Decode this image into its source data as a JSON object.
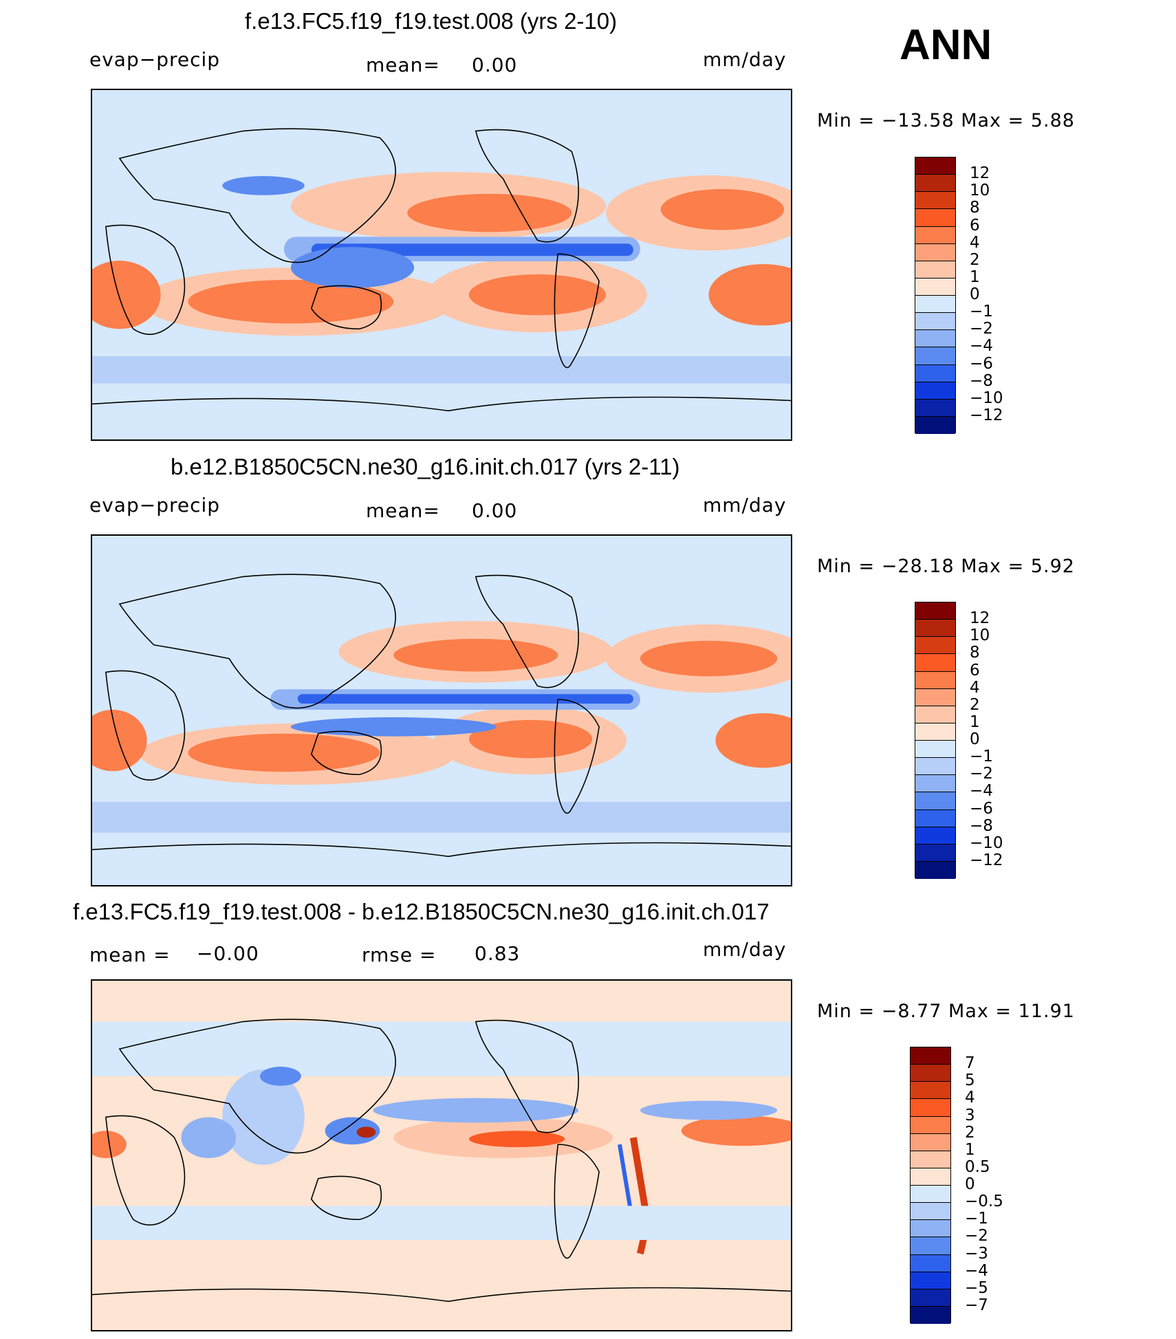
{
  "season": "ANN",
  "panels": [
    {
      "title": "f.e13.FC5.f19_f19.test.008 (yrs 2-10)",
      "left_label": "evap−precip",
      "center_label": "mean=",
      "center_value": "0.00",
      "right_label": "mm/day",
      "minmax": "Min  =  −13.58  Max  =     5.88",
      "colorbar": {
        "colors": [
          "#7f0000",
          "#b3260c",
          "#d73d12",
          "#fb5a24",
          "#fc7e4b",
          "#fda17a",
          "#fdc6aa",
          "#fee4d2",
          "#d6e8fb",
          "#b6cff8",
          "#8fb2f4",
          "#5b8bf0",
          "#2e62ec",
          "#0f3ae0",
          "#0a22a8",
          "#00107a"
        ],
        "labels": [
          "12",
          "10",
          "8",
          "6",
          "4",
          "2",
          "1",
          "0",
          "−1",
          "−2",
          "−4",
          "−6",
          "−8",
          "−10",
          "−12"
        ]
      }
    },
    {
      "title": "b.e12.B1850C5CN.ne30_g16.init.ch.017 (yrs 2-11)",
      "left_label": "evap−precip",
      "center_label": "mean=",
      "center_value": "0.00",
      "right_label": "mm/day",
      "minmax": "Min  =  −28.18  Max  =     5.92",
      "colorbar": {
        "colors": [
          "#7f0000",
          "#b3260c",
          "#d73d12",
          "#fb5a24",
          "#fc7e4b",
          "#fda17a",
          "#fdc6aa",
          "#fee4d2",
          "#d6e8fb",
          "#b6cff8",
          "#8fb2f4",
          "#5b8bf0",
          "#2e62ec",
          "#0f3ae0",
          "#0a22a8",
          "#00107a"
        ],
        "labels": [
          "12",
          "10",
          "8",
          "6",
          "4",
          "2",
          "1",
          "0",
          "−1",
          "−2",
          "−4",
          "−6",
          "−8",
          "−10",
          "−12"
        ]
      }
    },
    {
      "title": "f.e13.FC5.f19_f19.test.008 - b.e12.B1850C5CN.ne30_g16.init.ch.017",
      "left_label": "mean  =",
      "left_value": "−0.00",
      "center_label": "rmse  =",
      "center_value": "0.83",
      "right_label": "mm/day",
      "minmax": "Min  =     −8.77  Max  =    11.91",
      "colorbar": {
        "colors": [
          "#7f0000",
          "#b3260c",
          "#d73d12",
          "#fb5a24",
          "#fc7e4b",
          "#fda17a",
          "#fdc6aa",
          "#fee4d2",
          "#d6e8fb",
          "#b6cff8",
          "#8fb2f4",
          "#5b8bf0",
          "#2e62ec",
          "#0f3ae0",
          "#0a22a8",
          "#00107a"
        ],
        "labels": [
          "7",
          "5",
          "4",
          "3",
          "2",
          "1",
          "0.5",
          "0",
          "−0.5",
          "−1",
          "−2",
          "−3",
          "−4",
          "−5",
          "−7"
        ]
      }
    }
  ]
}
